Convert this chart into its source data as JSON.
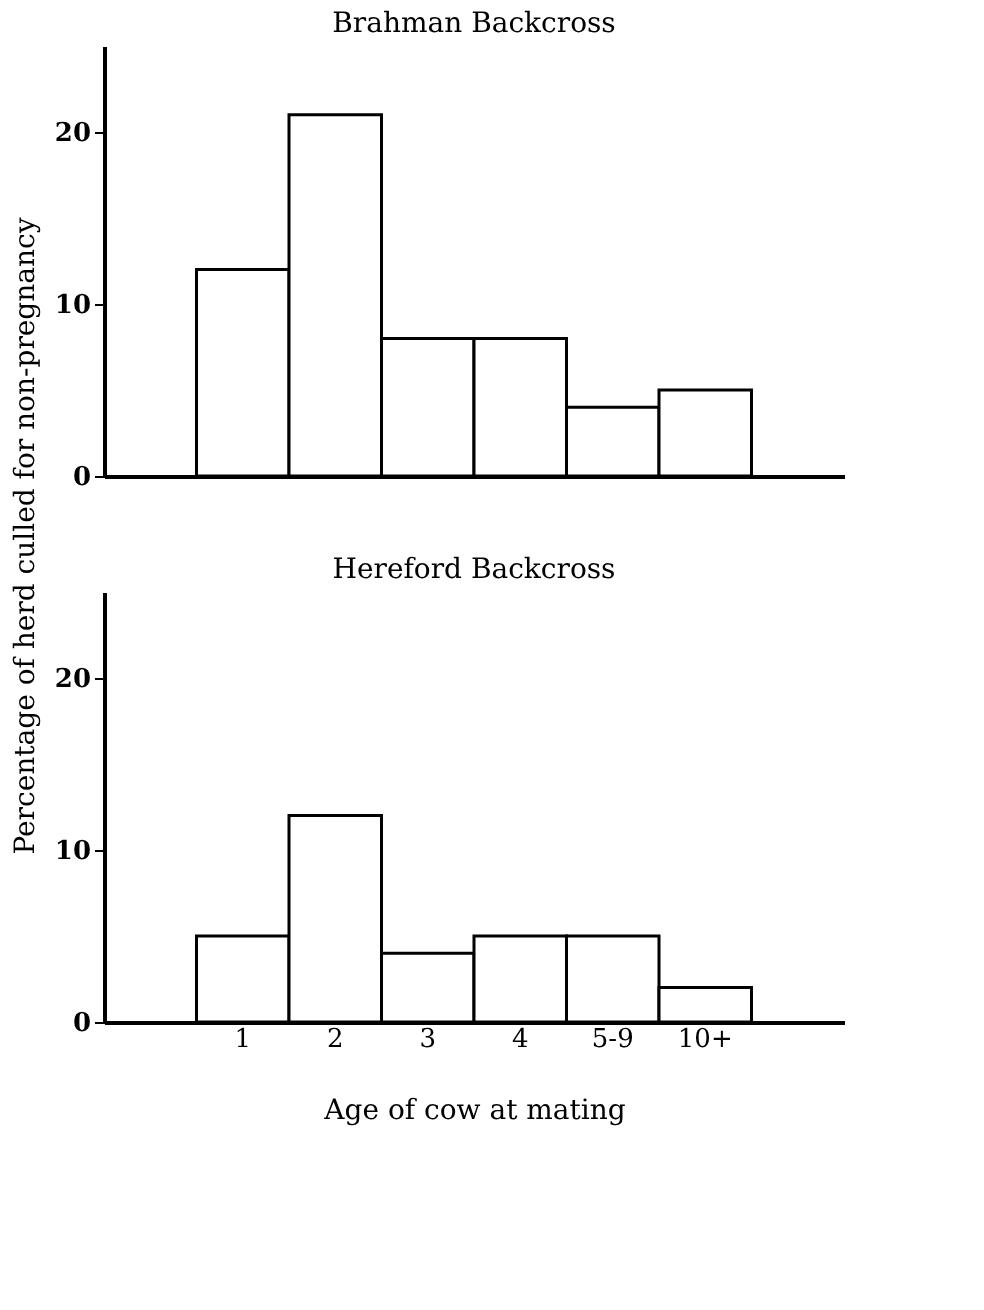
{
  "chart_data": [
    {
      "type": "bar",
      "title": "Brahman Backcross",
      "ylabel": "Percentage of herd culled for non-pregnancy",
      "categories": [
        null,
        null,
        null,
        null,
        null,
        null,
        null,
        null
      ],
      "values": [
        null,
        12,
        21,
        8,
        8,
        4,
        5,
        null
      ],
      "color": "#ffffff",
      "ylim": [
        0,
        25
      ],
      "yticks": [
        0,
        10,
        20
      ]
    },
    {
      "type": "bar",
      "title": "Hereford Backcross",
      "xlabel": "Age of cow at mating",
      "categories": [
        null,
        "1",
        "2",
        "3",
        "4",
        "5-9",
        "10+",
        null
      ],
      "values": [
        null,
        5,
        12,
        4,
        5,
        5,
        2,
        null
      ],
      "color": "#ffffff",
      "ylim": [
        0,
        25
      ],
      "yticks": [
        0,
        10,
        20
      ]
    }
  ]
}
